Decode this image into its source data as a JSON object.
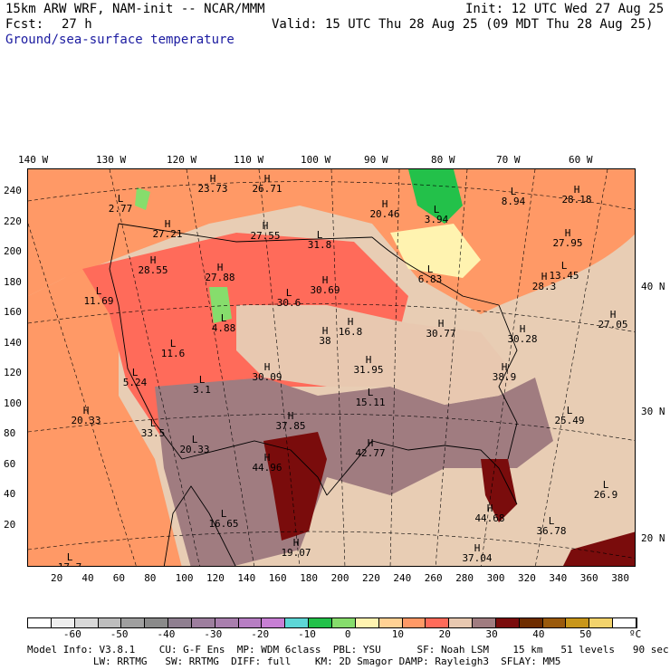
{
  "header": {
    "model_line": "15km ARW WRF, NAM-init -- NCAR/MMM",
    "init_line": "Init: 12 UTC Wed 27 Aug 25",
    "fcst_label": "Fcst:",
    "fcst_value": "27 h",
    "valid_line": "Valid: 15 UTC Thu 28 Aug 25 (09 MDT Thu 28 Aug 25)",
    "field_name": "Ground/sea-surface temperature"
  },
  "map": {
    "lon_labels_top": [
      "140 W",
      "130 W",
      "120 W",
      "110 W",
      "100 W",
      "90 W",
      "80 W",
      "70 W",
      "60 W"
    ],
    "lat_labels_right": [
      "40 N",
      "30 N",
      "20 N"
    ],
    "y_grid_labels": [
      "240",
      "220",
      "200",
      "180",
      "160",
      "140",
      "120",
      "100",
      "80",
      "60",
      "40",
      "20"
    ],
    "x_grid_labels": [
      "20",
      "40",
      "60",
      "80",
      "100",
      "120",
      "140",
      "160",
      "180",
      "200",
      "220",
      "240",
      "260",
      "280",
      "300",
      "320",
      "340",
      "360",
      "380"
    ],
    "markers": [
      {
        "letter": "H",
        "value": "23.73"
      },
      {
        "letter": "H",
        "value": "26.71"
      },
      {
        "letter": "L",
        "value": "2.77"
      },
      {
        "letter": "H",
        "value": "27.21"
      },
      {
        "letter": "H",
        "value": "27.55"
      },
      {
        "letter": "L",
        "value": "31.8"
      },
      {
        "letter": "H",
        "value": "20.46"
      },
      {
        "letter": "L",
        "value": "3.94"
      },
      {
        "letter": "L",
        "value": "8.94"
      },
      {
        "letter": "H",
        "value": "28.18"
      },
      {
        "letter": "H",
        "value": "27.95"
      },
      {
        "letter": "H",
        "value": "28.55"
      },
      {
        "letter": "H",
        "value": "27.88"
      },
      {
        "letter": "L",
        "value": "6.83"
      },
      {
        "letter": "H",
        "value": "28.3"
      },
      {
        "letter": "L",
        "value": "13.45"
      },
      {
        "letter": "L",
        "value": "11.69"
      },
      {
        "letter": "L",
        "value": "30.6"
      },
      {
        "letter": "H",
        "value": "30.69"
      },
      {
        "letter": "L",
        "value": "4.88"
      },
      {
        "letter": "H",
        "value": "16.8"
      },
      {
        "letter": "H",
        "value": "38"
      },
      {
        "letter": "H",
        "value": "30.77"
      },
      {
        "letter": "H",
        "value": "30.28"
      },
      {
        "letter": "H",
        "value": "27.05"
      },
      {
        "letter": "L",
        "value": "11.6"
      },
      {
        "letter": "H",
        "value": "31.95"
      },
      {
        "letter": "H",
        "value": "38.9"
      },
      {
        "letter": "L",
        "value": "5.24"
      },
      {
        "letter": "L",
        "value": "3.1"
      },
      {
        "letter": "H",
        "value": "30.09"
      },
      {
        "letter": "L",
        "value": "15.11"
      },
      {
        "letter": "H",
        "value": "20.33"
      },
      {
        "letter": "H",
        "value": "37.85"
      },
      {
        "letter": "L",
        "value": "25.49"
      },
      {
        "letter": "L",
        "value": "33.5"
      },
      {
        "letter": "L",
        "value": "20.33"
      },
      {
        "letter": "H",
        "value": "42.77"
      },
      {
        "letter": "H",
        "value": "44.96"
      },
      {
        "letter": "L",
        "value": "26.9"
      },
      {
        "letter": "H",
        "value": "44.68"
      },
      {
        "letter": "L",
        "value": "16.65"
      },
      {
        "letter": "L",
        "value": "36.78"
      },
      {
        "letter": "H",
        "value": "19.07"
      },
      {
        "letter": "H",
        "value": "37.04"
      },
      {
        "letter": "L",
        "value": "17.7"
      }
    ]
  },
  "colorbar": {
    "unit": "ºC",
    "tick_labels": [
      "-60",
      "-50",
      "-40",
      "-30",
      "-20",
      "-10",
      "0",
      "10",
      "20",
      "30",
      "40",
      "50"
    ],
    "colors": [
      "#ffffff",
      "#eeeeee",
      "#d8d8d8",
      "#bdbdbd",
      "#9f9f9f",
      "#8a8a8a",
      "#8f7f90",
      "#9d7e9e",
      "#a97fae",
      "#b77ec3",
      "#c77fd4",
      "#5dd6d6",
      "#23c14a",
      "#86dd6c",
      "#fff3b0",
      "#ffd194",
      "#ff9966",
      "#ff6b5a",
      "#e8c8b0",
      "#a07c80",
      "#7a0c0c",
      "#6e2c00",
      "#9a5a0c",
      "#c8961a",
      "#f2d36c",
      "#ffffff"
    ]
  },
  "footer": {
    "line1": "Model Info: V3.8.1    CU: G-F Ens  MP: WDM 6class  PBL: YSU      SF: Noah LSM    15 km   51 levels   90 sec",
    "line2": "           LW: RRTMG   SW: RRTMG  DIFF: full    KM: 2D Smagor DAMP: Rayleigh3  SFLAY: MM5"
  }
}
